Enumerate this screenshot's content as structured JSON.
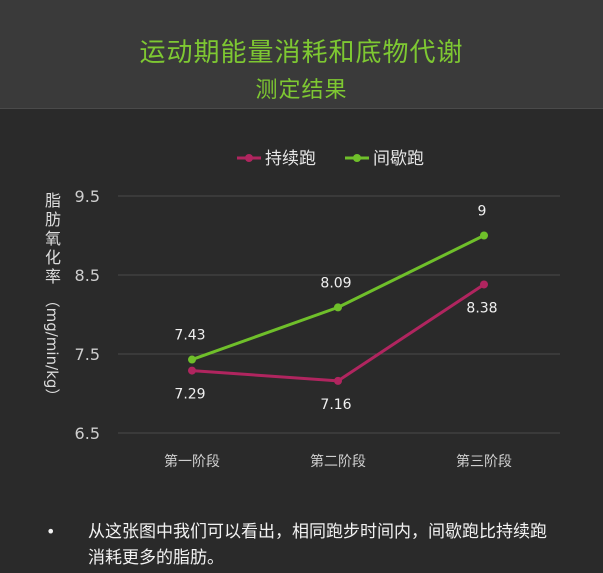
{
  "header": {
    "title": "运动期能量消耗和底物代谢",
    "subtitle": "测定结果"
  },
  "chart_data": {
    "type": "line",
    "title": "",
    "ylabel": "脂肪氧化率（mg/min/kg）",
    "xlabel": "",
    "categories": [
      "第一阶段",
      "第二阶段",
      "第三阶段"
    ],
    "ylim": [
      6.5,
      9.5
    ],
    "yticks": [
      "9.5",
      "8.5",
      "7.5",
      "6.5"
    ],
    "grid": true,
    "legend_position": "top",
    "series": [
      {
        "name": "持续跑",
        "color": "#b0255f",
        "values": [
          7.29,
          7.16,
          8.38
        ],
        "labels": [
          "7.29",
          "7.16",
          "8.38"
        ],
        "label_position": "below"
      },
      {
        "name": "间歇跑",
        "color": "#6fbf2a",
        "values": [
          7.43,
          8.09,
          9
        ],
        "labels": [
          "7.43",
          "8.09",
          "9"
        ],
        "label_position": "above"
      }
    ]
  },
  "bullet": {
    "symbol": "•",
    "text": "从这张图中我们可以看出，相同跑步时间内，间歇跑比持续跑消耗更多的脂肪。"
  },
  "colors": {
    "background": "#2a2a2a",
    "header_bg": "#3a3a3a",
    "title": "#7ec832",
    "grid": "#4a4a4a",
    "text": "#e6e6e6"
  }
}
